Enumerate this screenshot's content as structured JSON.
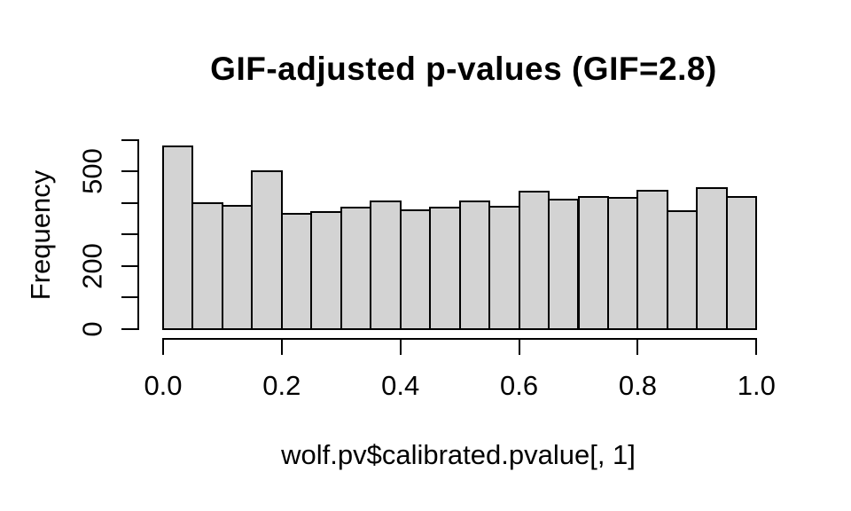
{
  "chart_data": {
    "type": "bar",
    "subtype": "histogram",
    "title": "GIF-adjusted p-values (GIF=2.8)",
    "xlabel": "wolf.pv$calibrated.pvalue[, 1]",
    "ylabel": "Frequency",
    "xlim": [
      0,
      1
    ],
    "ylim": [
      0,
      600
    ],
    "grid": false,
    "bin_start": 0,
    "bin_width": 0.05,
    "values": [
      580,
      400,
      390,
      502,
      366,
      370,
      384,
      406,
      377,
      386,
      406,
      388,
      435,
      412,
      419,
      415,
      438,
      373,
      446,
      418
    ],
    "x_ticks": [
      {
        "value": 0.0,
        "label": "0.0"
      },
      {
        "value": 0.2,
        "label": "0.2"
      },
      {
        "value": 0.4,
        "label": "0.4"
      },
      {
        "value": 0.6,
        "label": "0.6"
      },
      {
        "value": 0.8,
        "label": "0.8"
      },
      {
        "value": 1.0,
        "label": "1.0"
      }
    ],
    "y_ticks": [
      {
        "value": 0,
        "label": "0"
      },
      {
        "value": 100,
        "label": ""
      },
      {
        "value": 200,
        "label": "200"
      },
      {
        "value": 300,
        "label": ""
      },
      {
        "value": 400,
        "label": ""
      },
      {
        "value": 500,
        "label": "500"
      },
      {
        "value": 600,
        "label": ""
      }
    ],
    "bar_fill": "#d3d3d3",
    "bar_stroke": "#000000",
    "axis_color": "#000000",
    "background": "#ffffff"
  }
}
